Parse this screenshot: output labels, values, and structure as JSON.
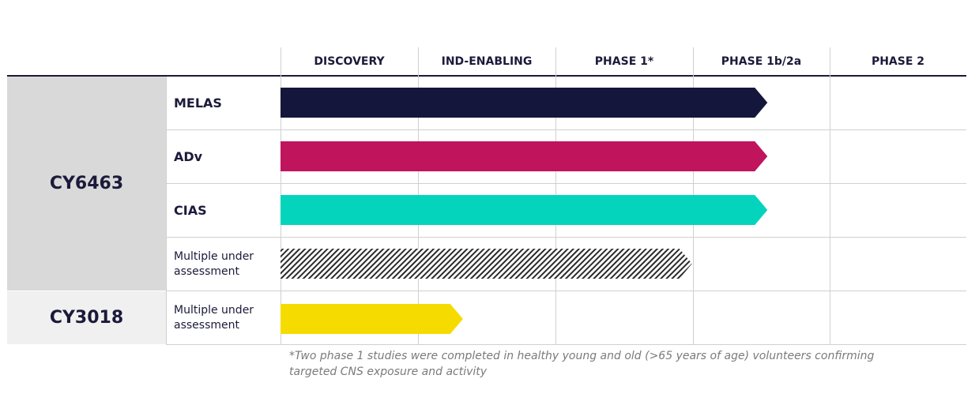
{
  "phases": [
    "DISCOVERY",
    "IND-ENABLING",
    "PHASE 1*",
    "PHASE 1b/2a",
    "PHASE 2"
  ],
  "programs": [
    {
      "name": "CY6463",
      "indications": [
        {
          "label": "MELAS",
          "color": "#15163b",
          "style": "solid",
          "progress_phases": 3.55
        },
        {
          "label": "ADv",
          "color": "#c0145d",
          "style": "solid",
          "progress_phases": 3.55
        },
        {
          "label": "CIAS",
          "color": "#05d4bd",
          "style": "solid",
          "progress_phases": 3.55
        },
        {
          "label": "Multiple under assessment",
          "color": "#2a2a2a",
          "style": "hatched",
          "progress_phases": 3.0
        }
      ]
    },
    {
      "name": "CY3018",
      "indications": [
        {
          "label": "Multiple under assessment",
          "color": "#f6db00",
          "style": "solid",
          "progress_phases": 1.33
        }
      ]
    }
  ],
  "footnote": "*Two phase 1 studies were completed in healthy young and old (>65 years of age) volunteers confirming targeted CNS exposure and activity"
}
